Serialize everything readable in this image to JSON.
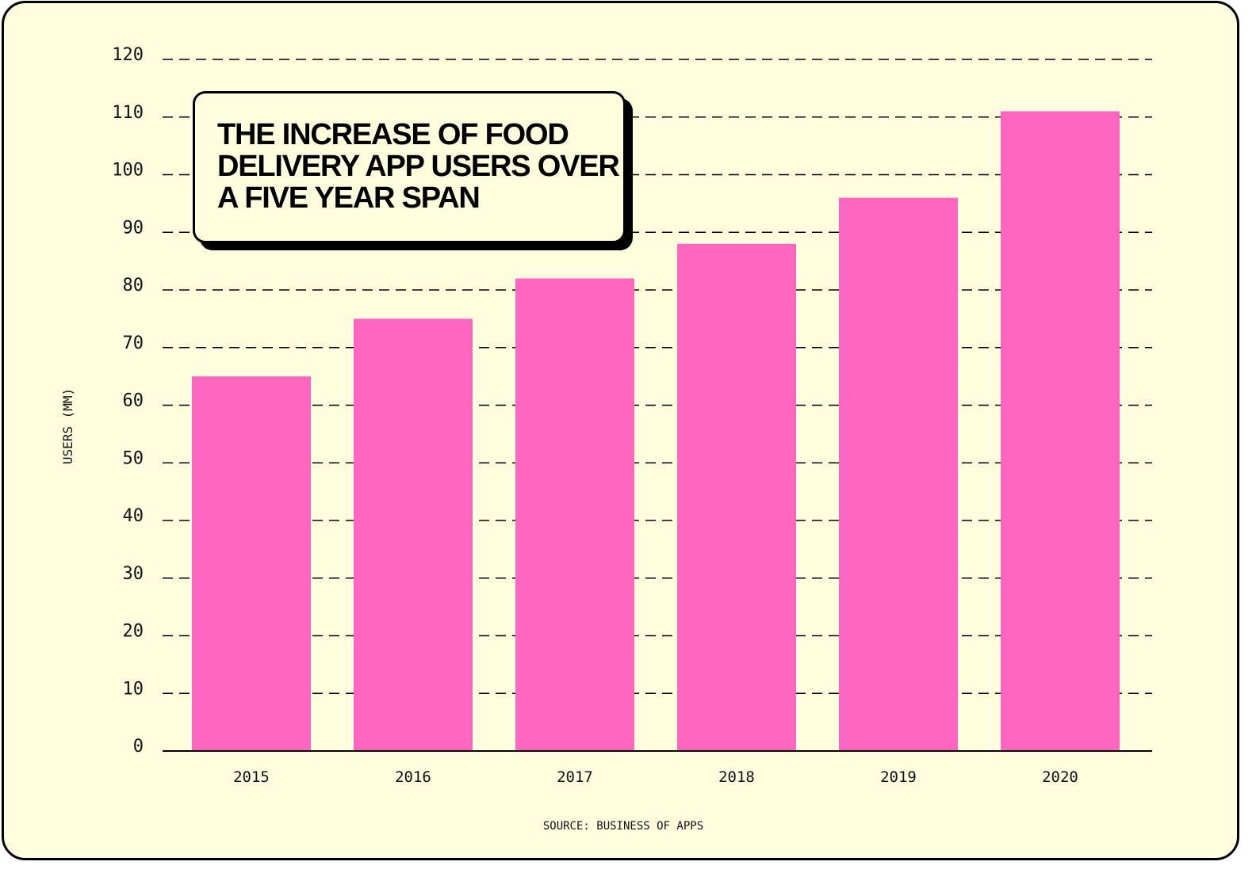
{
  "colors": {
    "background": "#fefedf",
    "bar": "#ff66c0",
    "ink": "#000000"
  },
  "chart_data": {
    "type": "bar",
    "title": "THE INCREASE OF FOOD DELIVERY APP USERS OVER A FIVE YEAR SPAN",
    "categories": [
      "2015",
      "2016",
      "2017",
      "2018",
      "2019",
      "2020"
    ],
    "values": [
      65,
      75,
      82,
      88,
      96,
      111
    ],
    "xlabel": "",
    "ylabel": "USERS (MM)",
    "ylim": [
      0,
      120
    ],
    "yticks": [
      "0",
      "10",
      "20",
      "30",
      "40",
      "50",
      "60",
      "70",
      "80",
      "90",
      "100",
      "110",
      "120"
    ],
    "grid": true,
    "grid_style": "dashed",
    "source": "SOURCE: BUSINESS OF APPS"
  }
}
